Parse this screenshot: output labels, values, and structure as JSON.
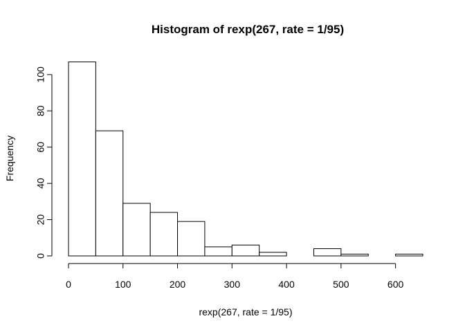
{
  "chart_data": {
    "type": "bar",
    "subtype": "histogram",
    "title": "Histogram of rexp(267, rate = 1/95)",
    "xlabel": "rexp(267, rate = 1/95)",
    "ylabel": "Frequency",
    "bin_edges": [
      0,
      50,
      100,
      150,
      200,
      250,
      300,
      350,
      400,
      450,
      500,
      550,
      600,
      650
    ],
    "values": [
      107,
      69,
      29,
      24,
      19,
      5,
      6,
      2,
      0,
      4,
      1,
      0,
      1
    ],
    "xlim": [
      0,
      650
    ],
    "ylim": [
      0,
      107
    ],
    "x_ticks": [
      0,
      100,
      200,
      300,
      400,
      500,
      600
    ],
    "y_ticks": [
      0,
      20,
      40,
      60,
      80,
      100
    ],
    "grid": false,
    "legend": "none",
    "bar_fill": "#ffffff",
    "bar_stroke": "#000000"
  }
}
